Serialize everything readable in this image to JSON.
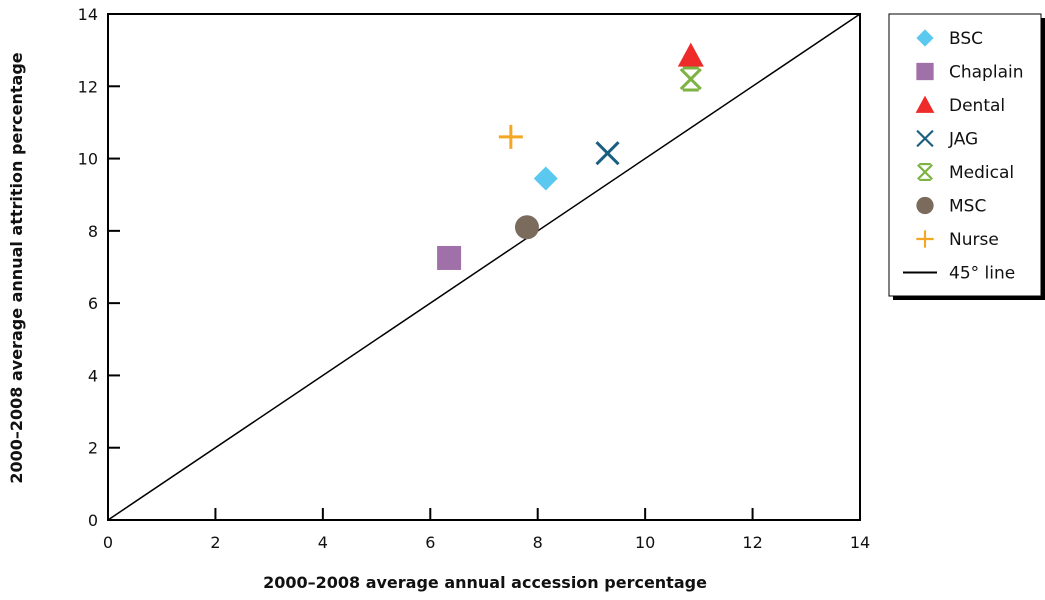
{
  "chart_data": {
    "type": "scatter",
    "xlabel": "2000–2008 average annual accession percentage",
    "ylabel": "2000–2008 average annual attrition percentage",
    "xlim": [
      0,
      14
    ],
    "ylim": [
      0,
      14
    ],
    "xticks": [
      "0",
      "2",
      "4",
      "6",
      "8",
      "10",
      "12",
      "14"
    ],
    "yticks": [
      "0",
      "2",
      "4",
      "6",
      "8",
      "10",
      "12",
      "14"
    ],
    "grid": false,
    "legend_position": "right",
    "series": [
      {
        "name": "BSC",
        "marker": "diamond",
        "color": "#5bc8f0",
        "x": 8.15,
        "y": 9.45
      },
      {
        "name": "Chaplain",
        "marker": "square",
        "color": "#a070a8",
        "x": 6.35,
        "y": 7.25
      },
      {
        "name": "Dental",
        "marker": "triangle",
        "color": "#ee2a2a",
        "x": 10.85,
        "y": 12.85
      },
      {
        "name": "JAG",
        "marker": "x",
        "color": "#1a5e82",
        "x": 9.3,
        "y": 10.15
      },
      {
        "name": "Medical",
        "marker": "asterisk",
        "color": "#7cb342",
        "x": 10.85,
        "y": 12.2
      },
      {
        "name": "MSC",
        "marker": "circle",
        "color": "#7b6b5d",
        "x": 7.8,
        "y": 8.1
      },
      {
        "name": "Nurse",
        "marker": "plus",
        "color": "#f5a623",
        "x": 7.5,
        "y": 10.6
      }
    ],
    "reference_line": {
      "name": "45° line",
      "color": "#000000",
      "from": [
        0,
        0
      ],
      "to": [
        14,
        14
      ]
    }
  }
}
